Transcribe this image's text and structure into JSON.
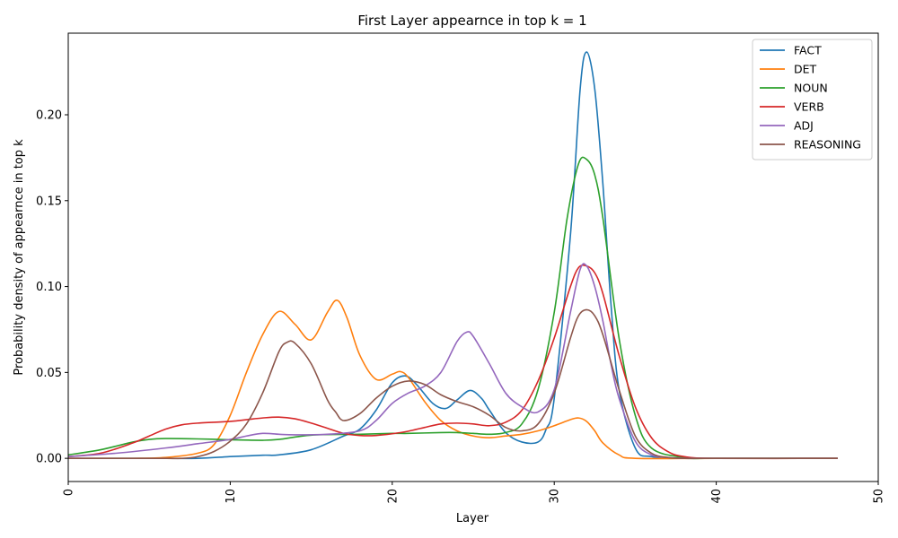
{
  "chart_data": {
    "type": "line",
    "title": "First Layer appearnce in top k = 1",
    "xlabel": "Layer",
    "ylabel": "Probability density of appearnce in top k",
    "xlim": [
      0,
      50
    ],
    "ylim": [
      -0.0135,
      0.2475
    ],
    "xticks": [
      "0",
      "10",
      "20",
      "30",
      "40",
      "50"
    ],
    "yticks": [
      "0.00",
      "0.05",
      "0.10",
      "0.15",
      "0.20"
    ],
    "xtick_rotation": 90,
    "grid": false,
    "legend": "top-right",
    "series": [
      {
        "name": "FACT",
        "color": "#1f77b4",
        "x": [
          0,
          5,
          8,
          10,
          12,
          13,
          15,
          17,
          18,
          19,
          20,
          20.8,
          21.5,
          22.5,
          23.3,
          24,
          24.8,
          25.5,
          26,
          27,
          28,
          29,
          29.5,
          30,
          31,
          31.6,
          32,
          32.5,
          33,
          33.5,
          34,
          35,
          36,
          38,
          40,
          45,
          47.5
        ],
        "y": [
          0,
          0,
          0,
          0.001,
          0.0018,
          0.002,
          0.005,
          0.013,
          0.017,
          0.028,
          0.044,
          0.048,
          0.043,
          0.032,
          0.029,
          0.034,
          0.0395,
          0.035,
          0.028,
          0.015,
          0.0095,
          0.0095,
          0.017,
          0.035,
          0.13,
          0.215,
          0.2365,
          0.215,
          0.16,
          0.09,
          0.04,
          0.006,
          0.001,
          0,
          0,
          0,
          0
        ]
      },
      {
        "name": "DET",
        "color": "#ff7f0e",
        "x": [
          0,
          4,
          6,
          8,
          9,
          10,
          11,
          12,
          13,
          14,
          15,
          16,
          16.6,
          17.2,
          18,
          19,
          20,
          20.5,
          21,
          22,
          23,
          24,
          25,
          26,
          27,
          28,
          29,
          30,
          31,
          31.5,
          32,
          32.5,
          33,
          34,
          35,
          40,
          47.5
        ],
        "y": [
          0,
          0,
          0.0005,
          0.003,
          0.008,
          0.025,
          0.05,
          0.072,
          0.0855,
          0.078,
          0.069,
          0.085,
          0.092,
          0.082,
          0.06,
          0.046,
          0.049,
          0.0505,
          0.047,
          0.033,
          0.022,
          0.016,
          0.013,
          0.012,
          0.013,
          0.014,
          0.016,
          0.019,
          0.0225,
          0.0235,
          0.0215,
          0.016,
          0.009,
          0.002,
          0,
          0,
          0
        ]
      },
      {
        "name": "NOUN",
        "color": "#2ca02c",
        "x": [
          0,
          2,
          4,
          5,
          6,
          8,
          10,
          12,
          13,
          15,
          18,
          20,
          21,
          23,
          24,
          25,
          26,
          27,
          28,
          29,
          30,
          30.8,
          31.5,
          32,
          32.5,
          33,
          34,
          35,
          36,
          38,
          40,
          47.5
        ],
        "y": [
          0.002,
          0.005,
          0.0095,
          0.011,
          0.0115,
          0.0113,
          0.0108,
          0.0105,
          0.011,
          0.0135,
          0.014,
          0.0145,
          0.0145,
          0.015,
          0.015,
          0.0145,
          0.014,
          0.015,
          0.02,
          0.04,
          0.085,
          0.14,
          0.1715,
          0.174,
          0.165,
          0.14,
          0.07,
          0.025,
          0.006,
          0.0005,
          0,
          0
        ]
      },
      {
        "name": "VERB",
        "color": "#d62728",
        "x": [
          0,
          2,
          4,
          5,
          6,
          7,
          8,
          10,
          11,
          12,
          13,
          14,
          15,
          16,
          17,
          18,
          19,
          20,
          21,
          22,
          23,
          24,
          25,
          26,
          27,
          28,
          29,
          30,
          31,
          31.5,
          32,
          32.5,
          33,
          34,
          35,
          36,
          37,
          38,
          40,
          47.5
        ],
        "y": [
          0.001,
          0.003,
          0.009,
          0.013,
          0.017,
          0.0195,
          0.0205,
          0.0215,
          0.0225,
          0.0235,
          0.024,
          0.023,
          0.0205,
          0.0175,
          0.0145,
          0.0133,
          0.0133,
          0.0143,
          0.0158,
          0.018,
          0.02,
          0.0205,
          0.02,
          0.019,
          0.021,
          0.028,
          0.045,
          0.07,
          0.1,
          0.111,
          0.112,
          0.108,
          0.096,
          0.06,
          0.03,
          0.012,
          0.004,
          0.001,
          0,
          0
        ]
      },
      {
        "name": "ADJ",
        "color": "#9467bd",
        "x": [
          0,
          3,
          6,
          8,
          10,
          11,
          12,
          13,
          14,
          16,
          18,
          19,
          20,
          21,
          22,
          23,
          24,
          24.6,
          25,
          26,
          27,
          28,
          29,
          30,
          31,
          31.6,
          32,
          32.5,
          33,
          33.5,
          34,
          35,
          36,
          37,
          38,
          40,
          47.5
        ],
        "y": [
          0.001,
          0.003,
          0.006,
          0.0085,
          0.011,
          0.013,
          0.0145,
          0.014,
          0.0137,
          0.014,
          0.016,
          0.022,
          0.032,
          0.038,
          0.042,
          0.05,
          0.068,
          0.0735,
          0.071,
          0.055,
          0.038,
          0.03,
          0.027,
          0.04,
          0.085,
          0.11,
          0.112,
          0.1,
          0.08,
          0.055,
          0.035,
          0.01,
          0.002,
          0.0005,
          0,
          0,
          0
        ]
      },
      {
        "name": "REASONING",
        "color": "#8c564b",
        "x": [
          0,
          5,
          7,
          8,
          9,
          10,
          11,
          12,
          13,
          13.5,
          14,
          15,
          16,
          16.5,
          17,
          18,
          19,
          20,
          21,
          22,
          23,
          24,
          25,
          26,
          27,
          28,
          29,
          30,
          31,
          31.5,
          32,
          32.5,
          33,
          34,
          35,
          36,
          37,
          38,
          40,
          47.5
        ],
        "y": [
          0,
          0,
          0,
          0.001,
          0.004,
          0.01,
          0.02,
          0.038,
          0.062,
          0.0675,
          0.067,
          0.055,
          0.034,
          0.027,
          0.022,
          0.026,
          0.035,
          0.042,
          0.045,
          0.043,
          0.037,
          0.033,
          0.03,
          0.025,
          0.018,
          0.016,
          0.02,
          0.038,
          0.07,
          0.083,
          0.0865,
          0.083,
          0.072,
          0.04,
          0.013,
          0.003,
          0.0005,
          0,
          0,
          0
        ]
      }
    ]
  }
}
